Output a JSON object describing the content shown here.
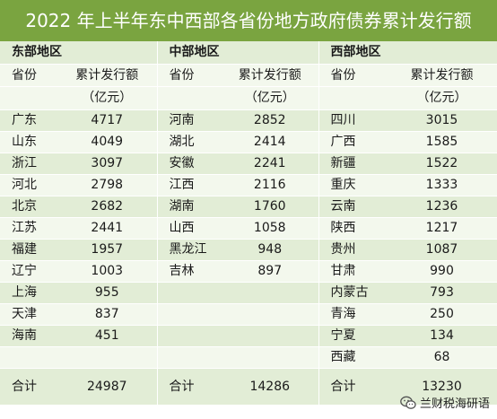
{
  "title": "2022 年上半年东中西部各省份地方政府债券累计发行额",
  "regions": {
    "east": "东部地区",
    "central": "中部地区",
    "west": "西部地区"
  },
  "headers": {
    "province": "省份",
    "amount_line1": "累计发行额",
    "amount_line2": "（亿元）"
  },
  "rows": [
    {
      "east_p": "广东",
      "east_v": "4717",
      "central_p": "河南",
      "central_v": "2852",
      "west_p": "四川",
      "west_v": "3015"
    },
    {
      "east_p": "山东",
      "east_v": "4049",
      "central_p": "湖北",
      "central_v": "2414",
      "west_p": "广西",
      "west_v": "1585"
    },
    {
      "east_p": "浙江",
      "east_v": "3097",
      "central_p": "安徽",
      "central_v": "2241",
      "west_p": "新疆",
      "west_v": "1522"
    },
    {
      "east_p": "河北",
      "east_v": "2798",
      "central_p": "江西",
      "central_v": "2116",
      "west_p": "重庆",
      "west_v": "1333"
    },
    {
      "east_p": "北京",
      "east_v": "2682",
      "central_p": "湖南",
      "central_v": "1760",
      "west_p": "云南",
      "west_v": "1236"
    },
    {
      "east_p": "江苏",
      "east_v": "2441",
      "central_p": "山西",
      "central_v": "1058",
      "west_p": "陕西",
      "west_v": "1217"
    },
    {
      "east_p": "福建",
      "east_v": "1957",
      "central_p": "黑龙江",
      "central_v": "948",
      "west_p": "贵州",
      "west_v": "1087"
    },
    {
      "east_p": "辽宁",
      "east_v": "1003",
      "central_p": "吉林",
      "central_v": "897",
      "west_p": "甘肃",
      "west_v": "990"
    },
    {
      "east_p": "上海",
      "east_v": "955",
      "central_p": "",
      "central_v": "",
      "west_p": "内蒙古",
      "west_v": "793"
    },
    {
      "east_p": "天津",
      "east_v": "837",
      "central_p": "",
      "central_v": "",
      "west_p": "青海",
      "west_v": "250"
    },
    {
      "east_p": "海南",
      "east_v": "451",
      "central_p": "",
      "central_v": "",
      "west_p": "宁夏",
      "west_v": "134"
    },
    {
      "east_p": "",
      "east_v": "",
      "central_p": "",
      "central_v": "",
      "west_p": "西藏",
      "west_v": "68"
    }
  ],
  "totals": {
    "label": "合计",
    "east": "24987",
    "central": "14286",
    "west": "13230"
  },
  "watermark": {
    "icon": "wechat-icon",
    "text": "兰财税海研语"
  },
  "colors": {
    "title_bg": "#7aa440",
    "row_dark": "#e2edd6",
    "row_light": "#f3f8ed"
  }
}
